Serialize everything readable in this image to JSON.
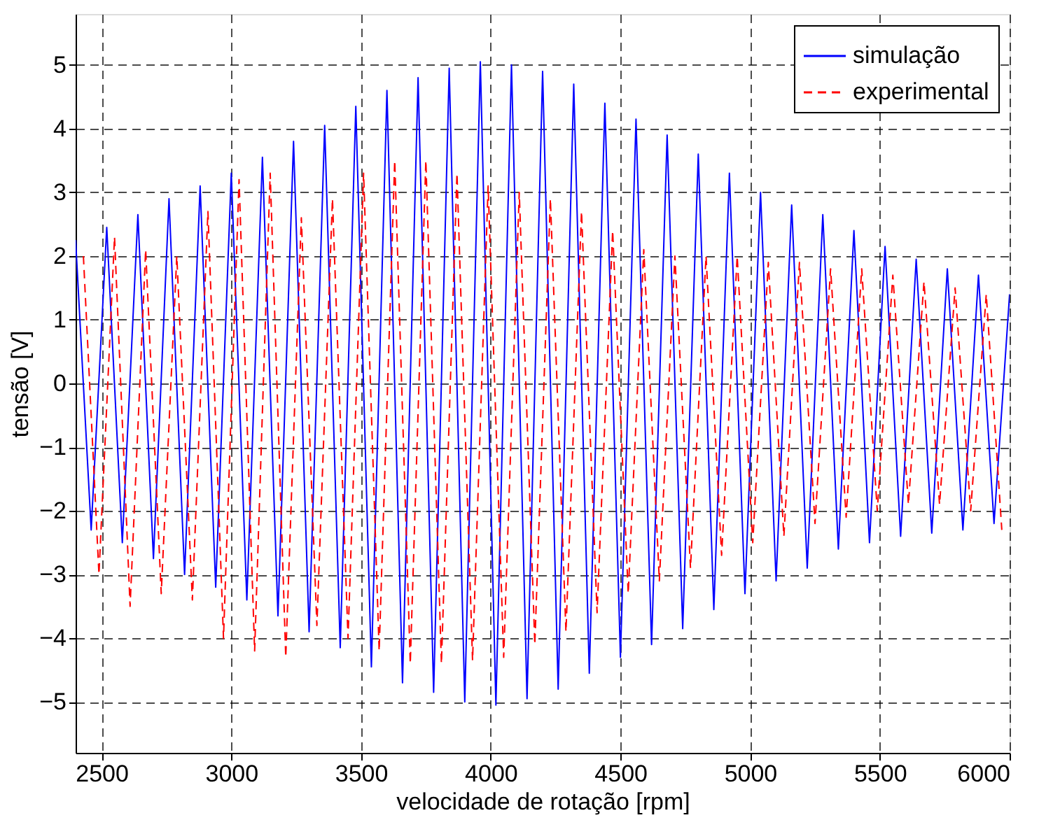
{
  "chart_data": {
    "type": "line",
    "xlabel": "velocidade de rotação [rpm]",
    "ylabel": "tensão [V]",
    "xlim": [
      2400,
      6000
    ],
    "ylim": [
      -5.8,
      5.8
    ],
    "xticks": [
      2500,
      3000,
      3500,
      4000,
      4500,
      5000,
      5500,
      6000
    ],
    "yticks": [
      -5,
      -4,
      -3,
      -2,
      -1,
      0,
      1,
      2,
      3,
      4,
      5
    ],
    "grid": true,
    "legend": "top right",
    "series": [
      {
        "name": "simulação",
        "color": "#0000ff",
        "line_style": "solid",
        "x": [
          2400,
          2460,
          2520,
          2580,
          2640,
          2700,
          2760,
          2820,
          2880,
          2940,
          3000,
          3060,
          3120,
          3180,
          3240,
          3300,
          3360,
          3420,
          3480,
          3540,
          3600,
          3660,
          3720,
          3780,
          3840,
          3900,
          3960,
          4020,
          4080,
          4140,
          4200,
          4260,
          4320,
          4380,
          4440,
          4500,
          4560,
          4620,
          4680,
          4740,
          4800,
          4860,
          4920,
          4980,
          5040,
          5100,
          5160,
          5220,
          5280,
          5340,
          5400,
          5460,
          5520,
          5580,
          5640,
          5700,
          5760,
          5820,
          5880,
          5940,
          6000
        ],
        "values": [
          2.25,
          -2.3,
          2.45,
          -2.5,
          2.65,
          -2.75,
          2.9,
          -3.0,
          3.1,
          -3.2,
          3.3,
          -3.4,
          3.55,
          -3.65,
          3.8,
          -3.9,
          4.05,
          -4.15,
          4.35,
          -4.45,
          4.6,
          -4.7,
          4.8,
          -4.85,
          4.95,
          -5.0,
          5.05,
          -5.05,
          5.0,
          -4.95,
          4.9,
          -4.8,
          4.7,
          -4.55,
          4.4,
          -4.3,
          4.15,
          -4.1,
          3.9,
          -3.85,
          3.6,
          -3.55,
          3.3,
          -3.3,
          3.0,
          -3.1,
          2.8,
          -2.9,
          2.65,
          -2.6,
          2.4,
          -2.5,
          2.15,
          -2.4,
          1.95,
          -2.35,
          1.8,
          -2.3,
          1.7,
          -2.2,
          1.4
        ]
      },
      {
        "name": "experimental",
        "color": "#ff0000",
        "line_style": "dashed",
        "x": [
          2430,
          2490,
          2550,
          2610,
          2670,
          2730,
          2790,
          2850,
          2910,
          2970,
          3030,
          3090,
          3150,
          3210,
          3270,
          3330,
          3390,
          3450,
          3510,
          3570,
          3630,
          3690,
          3750,
          3810,
          3870,
          3930,
          3990,
          4050,
          4110,
          4170,
          4230,
          4290,
          4350,
          4410,
          4470,
          4530,
          4590,
          4650,
          4710,
          4770,
          4830,
          4890,
          4950,
          5010,
          5070,
          5130,
          5190,
          5250,
          5310,
          5370,
          5430,
          5490,
          5550,
          5610,
          5670,
          5730,
          5790,
          5850,
          5910,
          5970
        ],
        "values": [
          2.0,
          -3.0,
          2.3,
          -3.5,
          2.1,
          -3.3,
          2.0,
          -3.4,
          2.7,
          -4.0,
          3.2,
          -4.2,
          3.3,
          -4.3,
          2.6,
          -3.8,
          2.9,
          -4.0,
          3.3,
          -4.2,
          3.5,
          -4.4,
          3.5,
          -4.4,
          3.3,
          -4.35,
          3.1,
          -4.3,
          3.0,
          -4.1,
          2.9,
          -3.9,
          2.7,
          -3.6,
          2.4,
          -3.3,
          2.1,
          -3.1,
          2.0,
          -2.9,
          2.0,
          -2.7,
          2.0,
          -2.5,
          1.9,
          -2.4,
          1.9,
          -2.2,
          1.8,
          -2.1,
          1.8,
          -2.0,
          1.7,
          -1.9,
          1.6,
          -1.9,
          1.5,
          -2.0,
          1.4,
          -2.3
        ]
      }
    ]
  }
}
